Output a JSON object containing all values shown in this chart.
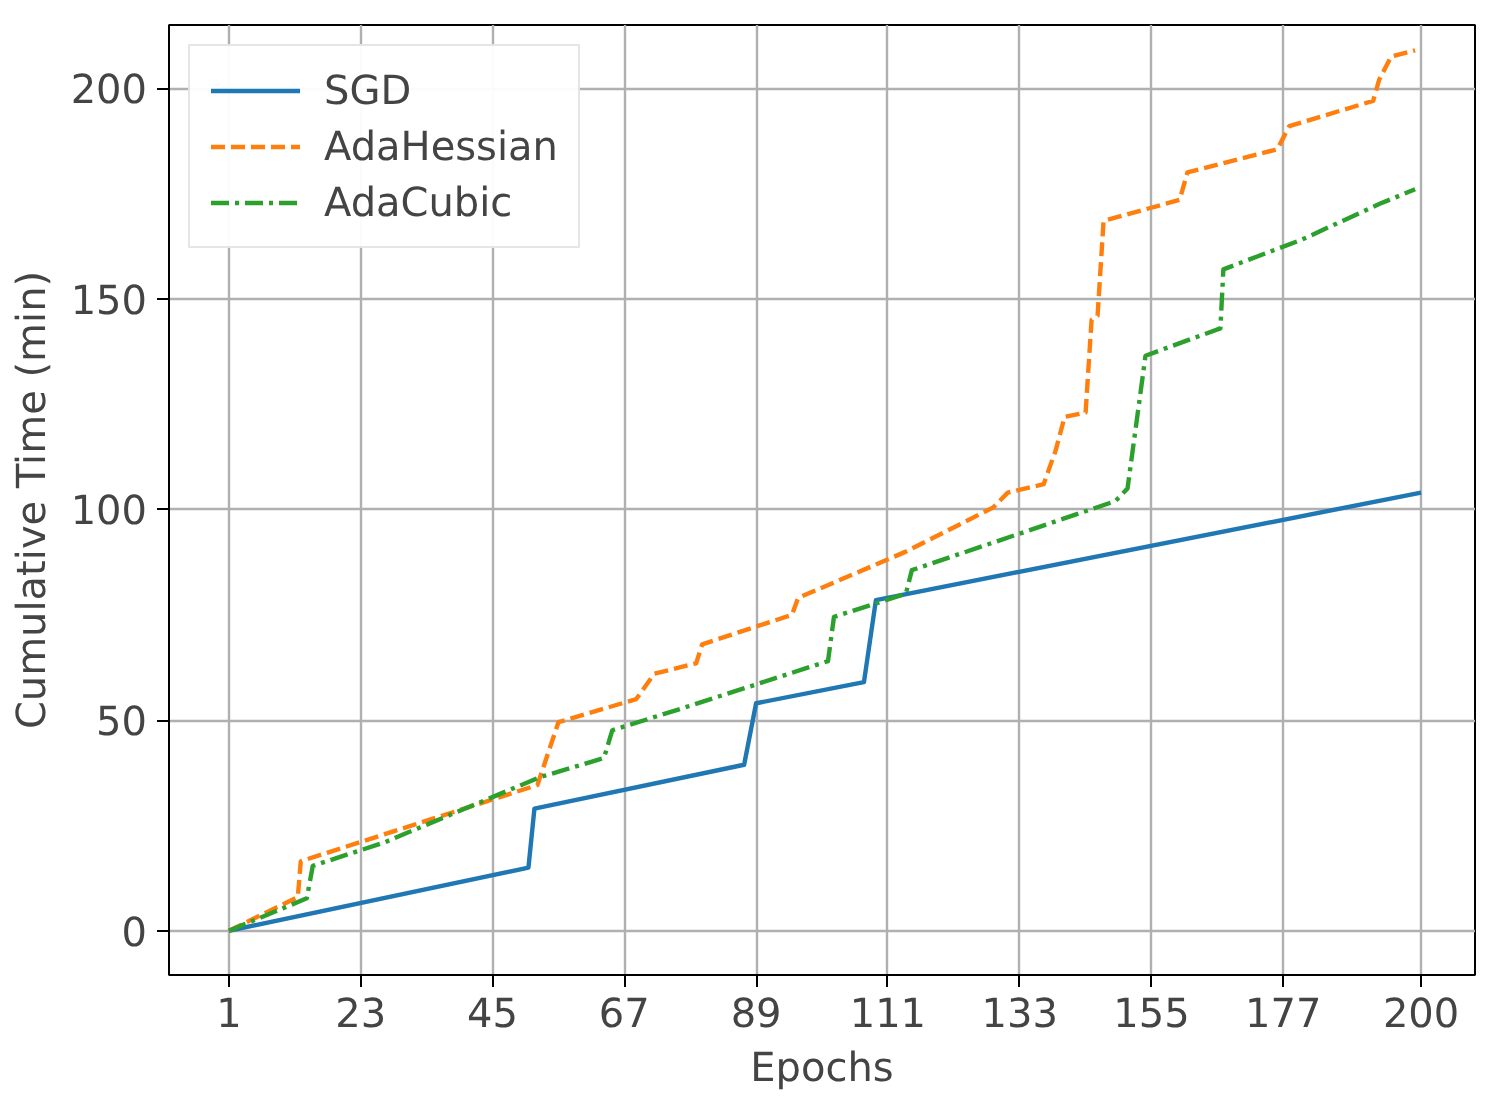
{
  "chart_data": {
    "type": "line",
    "xlabel": "Epochs",
    "ylabel": "Cumulative Time (min)",
    "xlim": [
      -9,
      209
    ],
    "ylim": [
      -10.5,
      215
    ],
    "xticks": [
      1,
      23,
      45,
      67,
      89,
      111,
      133,
      155,
      177,
      200
    ],
    "yticks": [
      0,
      50,
      100,
      150,
      200
    ],
    "grid": true,
    "legend": "top left",
    "series": [
      {
        "name": "SGD",
        "color": "#1f77b4",
        "line_style": "solid",
        "x": [
          1,
          51,
          52,
          87,
          89,
          107,
          109,
          200
        ],
        "values": [
          0,
          15,
          29,
          39.4,
          54,
          59,
          78.5,
          104
        ]
      },
      {
        "name": "AdaHessian",
        "color": "#ff7f0e",
        "line_style": "dashed",
        "x": [
          1,
          12.5,
          13,
          52.5,
          56,
          69,
          72,
          79,
          80,
          95,
          96,
          114,
          128.6,
          131,
          137,
          139,
          140.5,
          144,
          145,
          146,
          147,
          159.7,
          161,
          176,
          178,
          192,
          193,
          195,
          199
        ],
        "values": [
          0,
          8,
          16.5,
          34.6,
          49.5,
          55,
          61,
          63.5,
          68,
          75,
          79,
          90,
          100.5,
          104,
          106,
          114,
          122,
          123,
          145,
          146,
          168.5,
          173.5,
          180,
          185.5,
          191,
          197,
          202,
          207.5,
          209
        ]
      },
      {
        "name": "AdaCubic",
        "color": "#2ca02c",
        "line_style": "dashdot",
        "x": [
          1,
          14,
          15,
          27,
          53,
          63.6,
          65,
          76,
          101,
          102,
          114,
          115,
          149,
          151,
          154,
          166.5,
          167,
          180,
          193,
          199
        ],
        "values": [
          0,
          7.7,
          15.4,
          21,
          36.5,
          41,
          47.6,
          52.5,
          64,
          74.5,
          80,
          85.6,
          102,
          105,
          136.5,
          143,
          157,
          164,
          172.5,
          176
        ]
      }
    ]
  }
}
